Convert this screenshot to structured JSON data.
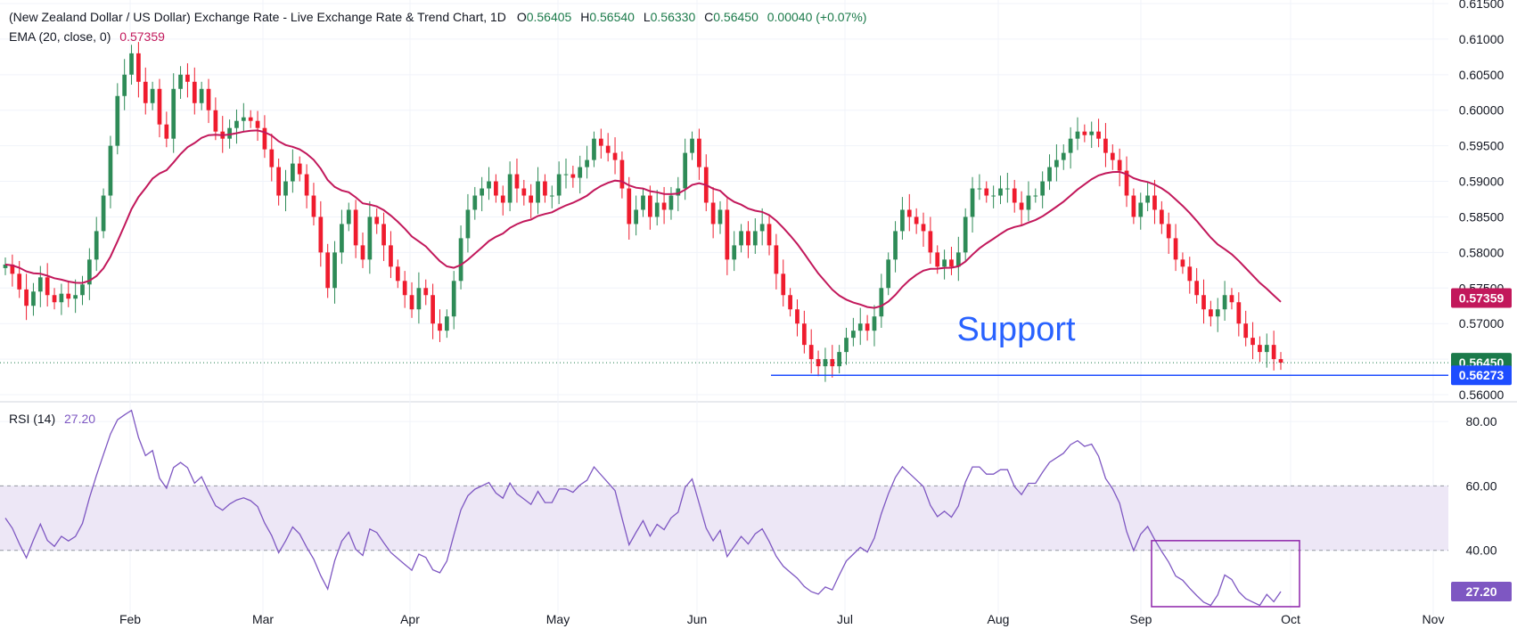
{
  "header": {
    "title": "(New Zealand Dollar / US Dollar) Exchange Rate - Live Exchange Rate & Trend Chart, 1D",
    "open_label": "O",
    "open": "0.56405",
    "high_label": "H",
    "high": "0.56540",
    "low_label": "L",
    "low": "0.56330",
    "close_label": "C",
    "close": "0.56450",
    "change": "0.00040 (+0.07%)",
    "ema_label": "EMA (20, close, 0)",
    "ema_value": "0.57359",
    "rsi_label": "RSI (14)",
    "rsi_value": "27.20"
  },
  "colors": {
    "up": "#26a69a",
    "down": "#ef1c2e",
    "up_candle": "#2e8b57",
    "ema": "#c2185b",
    "rsi": "#7e57c2",
    "support": "#1e4dff",
    "price_badge": "#1b7a4a",
    "rsi_band": "#ede7f6"
  },
  "annotation": {
    "support_text": "Support"
  },
  "badges": {
    "ema": "0.57359",
    "close": "0.56450",
    "support": "0.56273",
    "rsi": "27.20"
  },
  "chart_data": [
    {
      "type": "candlestick",
      "title": "",
      "x_tick_labels": [
        "Feb",
        "Mar",
        "Apr",
        "May",
        "Jun",
        "Jul",
        "Aug",
        "Sep",
        "Oct",
        "Nov"
      ],
      "y_tick_labels": [
        "0.56000",
        "0.56500",
        "0.57000",
        "0.57500",
        "0.58000",
        "0.58500",
        "0.59000",
        "0.59500",
        "0.60000",
        "0.60500",
        "0.61000",
        "0.61500"
      ],
      "ylim": [
        0.5595,
        0.6155
      ],
      "support_level": 0.56273,
      "close_series": [
        0.5783,
        0.577,
        0.5748,
        0.5725,
        0.5745,
        0.5765,
        0.574,
        0.573,
        0.5742,
        0.5735,
        0.574,
        0.5755,
        0.579,
        0.583,
        0.588,
        0.595,
        0.602,
        0.605,
        0.608,
        0.604,
        0.601,
        0.603,
        0.598,
        0.596,
        0.603,
        0.605,
        0.604,
        0.601,
        0.603,
        0.6,
        0.597,
        0.596,
        0.5975,
        0.5985,
        0.599,
        0.5985,
        0.5975,
        0.5945,
        0.592,
        0.588,
        0.59,
        0.5925,
        0.591,
        0.588,
        0.585,
        0.58,
        0.575,
        0.58,
        0.584,
        0.586,
        0.581,
        0.579,
        0.585,
        0.584,
        0.581,
        0.578,
        0.576,
        0.574,
        0.572,
        0.575,
        0.574,
        0.57,
        0.569,
        0.571,
        0.576,
        0.582,
        0.586,
        0.588,
        0.589,
        0.59,
        0.588,
        0.587,
        0.591,
        0.589,
        0.588,
        0.587,
        0.59,
        0.588,
        0.588,
        0.591,
        0.591,
        0.5905,
        0.592,
        0.593,
        0.596,
        0.595,
        0.594,
        0.593,
        0.589,
        0.584,
        0.586,
        0.588,
        0.585,
        0.587,
        0.586,
        0.588,
        0.589,
        0.594,
        0.596,
        0.592,
        0.587,
        0.584,
        0.586,
        0.579,
        0.581,
        0.583,
        0.581,
        0.583,
        0.584,
        0.581,
        0.577,
        0.574,
        0.572,
        0.57,
        0.567,
        0.565,
        0.564,
        0.565,
        0.564,
        0.566,
        0.568,
        0.569,
        0.57,
        0.569,
        0.571,
        0.575,
        0.579,
        0.583,
        0.586,
        0.585,
        0.584,
        0.583,
        0.58,
        0.578,
        0.579,
        0.578,
        0.58,
        0.585,
        0.589,
        0.589,
        0.588,
        0.588,
        0.589,
        0.589,
        0.587,
        0.586,
        0.588,
        0.588,
        0.59,
        0.592,
        0.593,
        0.594,
        0.596,
        0.597,
        0.5965,
        0.597,
        0.596,
        0.594,
        0.593,
        0.5915,
        0.588,
        0.585,
        0.587,
        0.588,
        0.586,
        0.584,
        0.582,
        0.579,
        0.578,
        0.576,
        0.574,
        0.572,
        0.571,
        0.572,
        0.574,
        0.573,
        0.57,
        0.568,
        0.567,
        0.566,
        0.567,
        0.565,
        0.5645
      ],
      "ema20": {
        "name": "EMA (20, close, 0)",
        "last": 0.57359
      }
    },
    {
      "type": "line",
      "title": "RSI (14)",
      "y_tick_labels": [
        "40.00",
        "60.00",
        "80.00"
      ],
      "ylim": [
        20,
        85
      ],
      "band": [
        40,
        60
      ],
      "last": 27.2,
      "annotation_box": "highlight around September RSI lows"
    }
  ]
}
